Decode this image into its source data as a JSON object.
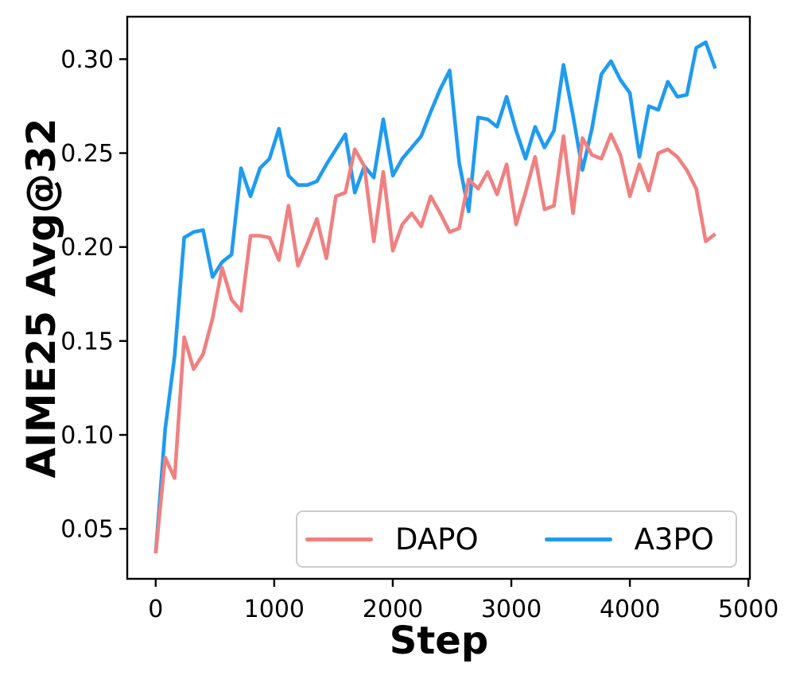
{
  "figure": {
    "background": "#ffffff",
    "frame_color": "#000000"
  },
  "chart_data": {
    "type": "line",
    "title": "",
    "xlabel": "Step",
    "ylabel": "AIME25 Avg@32",
    "grid": false,
    "legend_position": "lower center, inside axes",
    "xlim": [
      -240,
      5012
    ],
    "ylim": [
      0.0234,
      0.3226
    ],
    "x_ticks": [
      0,
      1000,
      2000,
      3000,
      4000,
      5000
    ],
    "x_ticklabels": [
      "0",
      "1000",
      "2000",
      "3000",
      "4000",
      "5000"
    ],
    "y_ticks": [
      0.05,
      0.1,
      0.15,
      0.2,
      0.25,
      0.3
    ],
    "y_ticklabels": [
      "0.05",
      "0.10",
      "0.15",
      "0.20",
      "0.25",
      "0.30"
    ],
    "x": [
      0,
      80,
      160,
      240,
      320,
      400,
      480,
      560,
      640,
      720,
      800,
      880,
      960,
      1040,
      1120,
      1200,
      1280,
      1360,
      1440,
      1520,
      1600,
      1680,
      1760,
      1840,
      1920,
      2000,
      2080,
      2160,
      2240,
      2320,
      2400,
      2480,
      2560,
      2640,
      2720,
      2800,
      2880,
      2960,
      3040,
      3120,
      3200,
      3280,
      3360,
      3440,
      3520,
      3600,
      3680,
      3760,
      3840,
      3920,
      4000,
      4080,
      4160,
      4240,
      4320,
      4400,
      4480,
      4560,
      4640,
      4720
    ],
    "series": [
      {
        "name": "DAPO",
        "color": "#F08080",
        "values": [
          0.037,
          0.088,
          0.077,
          0.152,
          0.135,
          0.143,
          0.162,
          0.189,
          0.172,
          0.166,
          0.206,
          0.206,
          0.205,
          0.193,
          0.222,
          0.19,
          0.202,
          0.215,
          0.194,
          0.227,
          0.229,
          0.252,
          0.243,
          0.203,
          0.24,
          0.198,
          0.212,
          0.218,
          0.211,
          0.227,
          0.218,
          0.208,
          0.21,
          0.236,
          0.231,
          0.24,
          0.228,
          0.244,
          0.212,
          0.229,
          0.248,
          0.22,
          0.222,
          0.259,
          0.218,
          0.258,
          0.249,
          0.247,
          0.26,
          0.249,
          0.227,
          0.244,
          0.23,
          0.25,
          0.252,
          0.248,
          0.241,
          0.231,
          0.203,
          0.207
        ]
      },
      {
        "name": "A3PO",
        "color": "#1F9BF0",
        "values": [
          0.037,
          0.103,
          0.142,
          0.205,
          0.208,
          0.209,
          0.184,
          0.192,
          0.196,
          0.242,
          0.227,
          0.242,
          0.247,
          0.263,
          0.238,
          0.233,
          0.233,
          0.235,
          0.244,
          0.252,
          0.26,
          0.229,
          0.243,
          0.237,
          0.268,
          0.238,
          0.247,
          0.253,
          0.259,
          0.272,
          0.284,
          0.294,
          0.245,
          0.219,
          0.269,
          0.268,
          0.264,
          0.28,
          0.262,
          0.247,
          0.264,
          0.253,
          0.262,
          0.297,
          0.27,
          0.241,
          0.263,
          0.292,
          0.299,
          0.289,
          0.282,
          0.248,
          0.275,
          0.273,
          0.288,
          0.28,
          0.281,
          0.306,
          0.309,
          0.295
        ]
      }
    ]
  }
}
